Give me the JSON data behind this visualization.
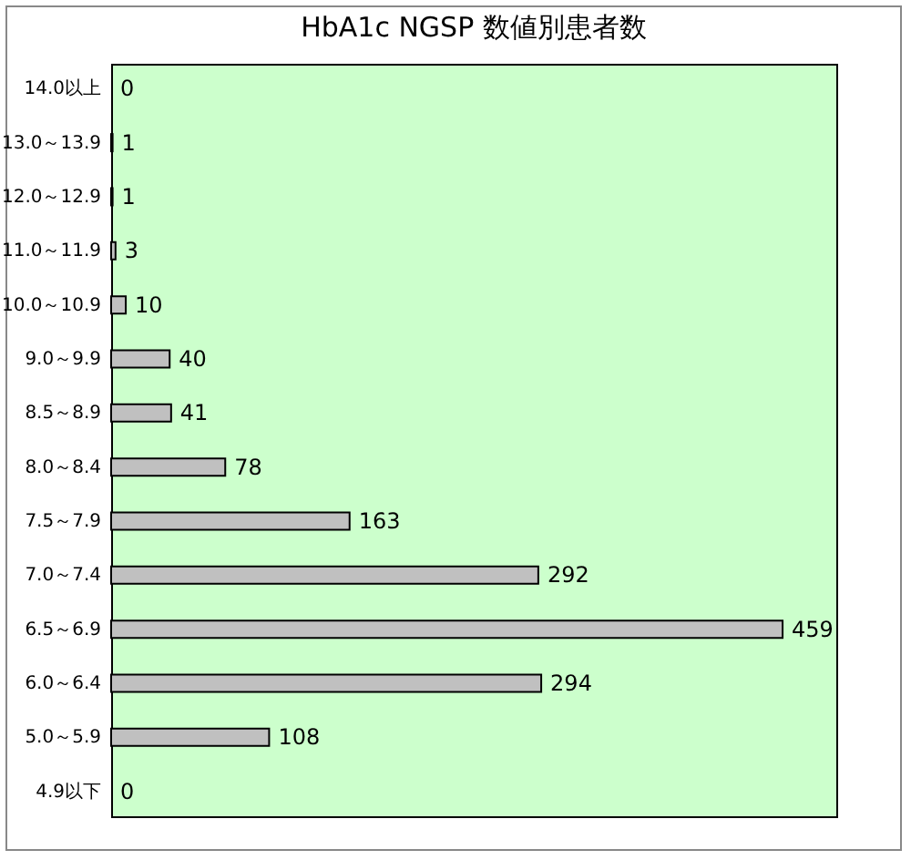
{
  "chart_data": {
    "type": "bar",
    "title": "HbA1c NGSP 数値別患者数",
    "orientation": "horizontal",
    "data_labels": true,
    "categories": [
      "14.0以上",
      "13.0～13.9",
      "12.0～12.9",
      "11.0～11.9",
      "10.0～10.9",
      "9.0～9.9",
      "8.5～8.9",
      "8.0～8.4",
      "7.5～7.9",
      "7.0～7.4",
      "6.5～6.9",
      "6.0～6.4",
      "5.0～5.9",
      "4.9以下"
    ],
    "values": [
      0,
      1,
      1,
      3,
      10,
      40,
      41,
      78,
      163,
      292,
      459,
      294,
      108,
      0
    ],
    "color": "#c0c0c0"
  }
}
